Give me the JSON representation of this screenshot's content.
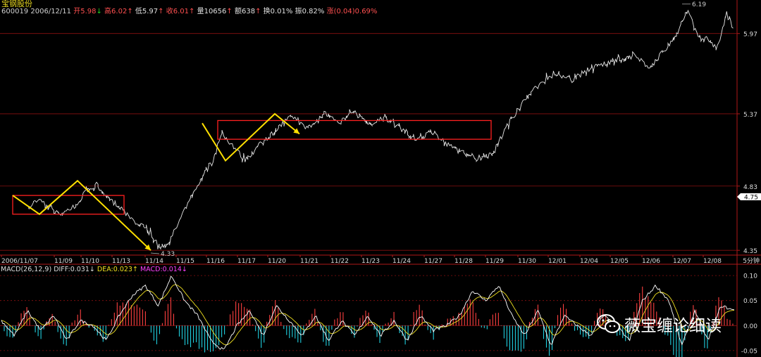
{
  "header": {
    "stock_name": "宝钢股份",
    "code": "600019",
    "date": "2006/12/11",
    "open_label": "开",
    "open": "5.98",
    "high_label": "高",
    "high": "6.02",
    "low_label": "低",
    "low": "5.97",
    "close_label": "收",
    "close": "6.01",
    "volume_label": "量",
    "volume": "10656",
    "amount_label": "额",
    "amount": "638",
    "turnover_label": "换",
    "turnover": "0.01%",
    "amplitude_label": "振",
    "amplitude": "0.82%",
    "change_label": "涨",
    "change": "(0.04)0.69%"
  },
  "macd_header": {
    "label": "MACD(26,12,9)",
    "diff_label": "DIFF:",
    "diff": "0.031",
    "dea_label": "DEA:",
    "dea": "0.023",
    "macd_label": "MACD:",
    "macd": "0.014"
  },
  "watermark": "薇宝缠论细读",
  "chart_data": {
    "type": "line",
    "title": "",
    "period_label": "5分钟",
    "x_tick_labels": [
      "2006/11/07",
      "11/09",
      "11/10",
      "11/13",
      "11/14",
      "11/15",
      "11/16",
      "11/17",
      "11/20",
      "11/21",
      "11/22",
      "11/23",
      "11/24",
      "11/27",
      "11/28",
      "11/29",
      "11/30",
      "12/01",
      "12/04",
      "12/05",
      "12/06",
      "12/07",
      "12/08"
    ],
    "price_axis": {
      "ticks": [
        4.35,
        4.83,
        5.37,
        5.97
      ],
      "ylim": [
        4.33,
        6.21
      ],
      "current_marker": 4.75
    },
    "annotations": [
      {
        "label": "4.33",
        "date": "11/14",
        "value": 4.33
      },
      {
        "label": "6.19",
        "date": "12/07",
        "value": 6.19
      }
    ],
    "price_anchors": [
      [
        "2006/11/07",
        4.7
      ],
      [
        "11/08",
        4.66
      ],
      [
        "11/08",
        4.73
      ],
      [
        "11/09",
        4.62
      ],
      [
        "11/09",
        4.68
      ],
      [
        "11/10",
        4.79
      ],
      [
        "11/10",
        4.84
      ],
      [
        "11/10",
        4.74
      ],
      [
        "11/13",
        4.66
      ],
      [
        "11/13",
        4.56
      ],
      [
        "11/14",
        4.48
      ],
      [
        "11/14",
        4.36
      ],
      [
        "11/14",
        4.44
      ],
      [
        "11/15",
        4.63
      ],
      [
        "11/15",
        4.85
      ],
      [
        "11/16",
        5.0
      ],
      [
        "11/16",
        5.22
      ],
      [
        "11/16",
        5.14
      ],
      [
        "11/17",
        5.02
      ],
      [
        "11/17",
        5.14
      ],
      [
        "11/20",
        5.25
      ],
      [
        "11/20",
        5.36
      ],
      [
        "11/21",
        5.26
      ],
      [
        "11/21",
        5.3
      ],
      [
        "11/21",
        5.38
      ],
      [
        "11/22",
        5.3
      ],
      [
        "11/22",
        5.38
      ],
      [
        "11/23",
        5.28
      ],
      [
        "11/23",
        5.34
      ],
      [
        "11/24",
        5.26
      ],
      [
        "11/24",
        5.18
      ],
      [
        "11/27",
        5.24
      ],
      [
        "11/27",
        5.14
      ],
      [
        "11/28",
        5.08
      ],
      [
        "11/28",
        5.04
      ],
      [
        "11/29",
        5.08
      ],
      [
        "11/29",
        5.32
      ],
      [
        "11/30",
        5.48
      ],
      [
        "11/30",
        5.6
      ],
      [
        "12/01",
        5.68
      ],
      [
        "12/01",
        5.62
      ],
      [
        "12/04",
        5.7
      ],
      [
        "12/04",
        5.74
      ],
      [
        "12/05",
        5.78
      ],
      [
        "12/05",
        5.8
      ],
      [
        "12/06",
        5.72
      ],
      [
        "12/06",
        5.85
      ],
      [
        "12/07",
        5.97
      ],
      [
        "12/07",
        6.16
      ],
      [
        "12/07",
        5.95
      ],
      [
        "12/08",
        5.93
      ],
      [
        "12/08",
        5.86
      ],
      [
        "12/08",
        6.12
      ],
      [
        "12/11",
        6.01
      ]
    ],
    "macd_axis": {
      "ticks": [
        0.1,
        0.05,
        0,
        -0.05
      ],
      "ylim": [
        -0.06,
        0.11
      ]
    },
    "diff_anchors": [
      0.01,
      -0.02,
      0.03,
      -0.01,
      0.02,
      -0.03,
      0.01,
      0.0,
      -0.03,
      0.02,
      0.06,
      0.08,
      0.04,
      0.1,
      0.05,
      0.02,
      -0.03,
      -0.05,
      0.0,
      0.03,
      -0.02,
      0.04,
      0.01,
      -0.02,
      0.02,
      -0.03,
      0.01,
      -0.02,
      0.02,
      -0.02,
      0.01,
      -0.03,
      0.02,
      -0.01,
      0.0,
      0.02,
      0.07,
      0.05,
      0.08,
      0.02,
      -0.02,
      0.03,
      -0.04,
      0.02,
      0.0,
      -0.02,
      0.02,
      0.0,
      -0.03,
      0.05,
      0.08,
      0.05,
      -0.04,
      0.03,
      -0.03,
      0.04,
      0.03
    ],
    "series": [
      {
        "name": "DIFF",
        "color": "#ffffff"
      },
      {
        "name": "DEA",
        "color": "#f0e020"
      },
      {
        "name": "MACD",
        "color_up": "#ff4040",
        "color_down": "#20d0e0"
      }
    ],
    "boxes": [
      {
        "from": "2006/11/07",
        "to": "11/13",
        "top": 4.76,
        "bottom": 4.62
      },
      {
        "from": "11/16",
        "to": "11/29",
        "top": 5.32,
        "bottom": 5.18
      }
    ],
    "zigzag": [
      {
        "points": [
          [
            "2006/11/07",
            4.76
          ],
          [
            "11/09",
            4.62
          ],
          [
            "11/10",
            4.87
          ],
          [
            "11/14",
            4.35
          ]
        ]
      },
      {
        "points": [
          [
            "11/16",
            5.3
          ],
          [
            "11/17",
            5.02
          ],
          [
            "11/20",
            5.37
          ],
          [
            "11/21",
            5.22
          ]
        ]
      }
    ]
  },
  "colors": {
    "grid": "#8a1010",
    "axis": "#b01818",
    "price": "#ffffff",
    "box": "#ff2020",
    "zigzag": "#ffe000"
  }
}
